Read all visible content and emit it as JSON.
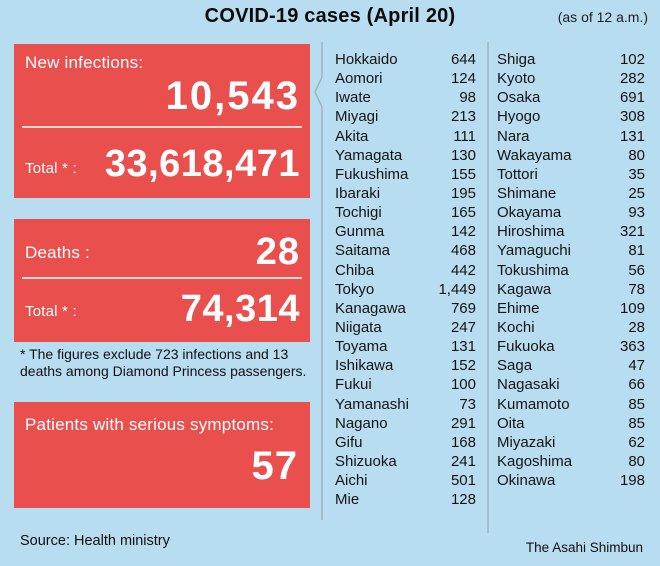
{
  "chart_data": {
    "type": "table",
    "title": "COVID-19 cases (April 20)",
    "as_of": "(as of 12 a.m.)",
    "columns": [
      "prefecture",
      "new_cases"
    ],
    "summary": {
      "new_infections_label": "New infections:",
      "new_infections": 10543,
      "infections_total_label": "Total * :",
      "infections_total": 33618471,
      "deaths_label": "Deaths :",
      "deaths": 28,
      "deaths_total_label": "Total * :",
      "deaths_total": 74314,
      "serious_label": "Patients with serious symptoms:",
      "serious": 57
    },
    "prefectures_col1": [
      {
        "name": "Hokkaido",
        "value": 644
      },
      {
        "name": "Aomori",
        "value": 124
      },
      {
        "name": "Iwate",
        "value": 98
      },
      {
        "name": "Miyagi",
        "value": 213
      },
      {
        "name": "Akita",
        "value": 111
      },
      {
        "name": "Yamagata",
        "value": 130
      },
      {
        "name": "Fukushima",
        "value": 155
      },
      {
        "name": "Ibaraki",
        "value": 195
      },
      {
        "name": "Tochigi",
        "value": 165
      },
      {
        "name": "Gunma",
        "value": 142
      },
      {
        "name": "Saitama",
        "value": 468
      },
      {
        "name": "Chiba",
        "value": 442
      },
      {
        "name": "Tokyo",
        "value": 1449
      },
      {
        "name": "Kanagawa",
        "value": 769
      },
      {
        "name": "Niigata",
        "value": 247
      },
      {
        "name": "Toyama",
        "value": 131
      },
      {
        "name": "Ishikawa",
        "value": 152
      },
      {
        "name": "Fukui",
        "value": 100
      },
      {
        "name": "Yamanashi",
        "value": 73
      },
      {
        "name": "Nagano",
        "value": 291
      },
      {
        "name": "Gifu",
        "value": 168
      },
      {
        "name": "Shizuoka",
        "value": 241
      },
      {
        "name": "Aichi",
        "value": 501
      },
      {
        "name": "Mie",
        "value": 128
      }
    ],
    "prefectures_col2": [
      {
        "name": "Shiga",
        "value": 102
      },
      {
        "name": "Kyoto",
        "value": 282
      },
      {
        "name": "Osaka",
        "value": 691
      },
      {
        "name": "Hyogo",
        "value": 308
      },
      {
        "name": "Nara",
        "value": 131
      },
      {
        "name": "Wakayama",
        "value": 80
      },
      {
        "name": "Tottori",
        "value": 35
      },
      {
        "name": "Shimane",
        "value": 25
      },
      {
        "name": "Okayama",
        "value": 93
      },
      {
        "name": "Hiroshima",
        "value": 321
      },
      {
        "name": "Yamaguchi",
        "value": 81
      },
      {
        "name": "Tokushima",
        "value": 56
      },
      {
        "name": "Kagawa",
        "value": 78
      },
      {
        "name": "Ehime",
        "value": 109
      },
      {
        "name": "Kochi",
        "value": 28
      },
      {
        "name": "Fukuoka",
        "value": 363
      },
      {
        "name": "Saga",
        "value": 47
      },
      {
        "name": "Nagasaki",
        "value": 66
      },
      {
        "name": "Kumamoto",
        "value": 85
      },
      {
        "name": "Oita",
        "value": 85
      },
      {
        "name": "Miyazaki",
        "value": 62
      },
      {
        "name": "Kagoshima",
        "value": 80
      },
      {
        "name": "Okinawa",
        "value": 198
      }
    ],
    "footnote": [
      "* The figures exclude 723 infections and 13",
      "deaths among Diamond Princess passengers."
    ],
    "source": "Source: Health ministry",
    "credit": "The Asahi Shimbun"
  },
  "colors": {
    "background": "#b9ddf0",
    "panel_red": "#e9504d",
    "divider_gray": "#9cb0ba",
    "text_dark": "#131313",
    "panel_text": "#ffffff"
  }
}
